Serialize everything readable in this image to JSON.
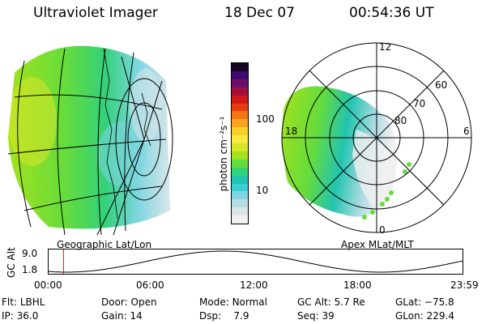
{
  "header": {
    "instrument": "Ultraviolet Imager",
    "date": "18 Dec 07",
    "time": "00:54:36 UT"
  },
  "colorbar": {
    "unit_label": "photon cm⁻²s⁻¹",
    "tick_100": "100",
    "tick_10": "10",
    "colors": [
      "#f0f0f0",
      "#d8e6ea",
      "#b8dde6",
      "#7fd6e0",
      "#3ccfd6",
      "#22c4b0",
      "#33d17a",
      "#66dc3c",
      "#a4e21c",
      "#d8e62a",
      "#f4ea40",
      "#fbcf2a",
      "#f9a31e",
      "#f47418",
      "#ea3a14",
      "#d01818",
      "#a0103a",
      "#6a0f6a",
      "#3d0a6e",
      "#140622"
    ]
  },
  "left_panel": {
    "label": "Geographic Lat/Lon"
  },
  "right_panel": {
    "label": "Apex MLat/MLT",
    "mlt_labels": {
      "top": "12",
      "left": "18",
      "right": "6",
      "bottom": "0"
    },
    "lat_labels": {
      "outer": "60",
      "mid": "70",
      "inner": "80"
    }
  },
  "timeline": {
    "ylabel": "GC Alt",
    "y_high": "9.0",
    "y_low": "1.8",
    "ticks": [
      "00:00",
      "06:00",
      "12:00",
      "18:00",
      "23:59"
    ],
    "marker_time_hours": 0.91,
    "marker_color": "#cc2222"
  },
  "info": {
    "row1": [
      {
        "label": "Flt:",
        "value": "LBHL"
      },
      {
        "label": "Door:",
        "value": "Open"
      },
      {
        "label": "Mode:",
        "value": "Normal"
      },
      {
        "label": "GC Alt:",
        "value": "5.7 Re"
      },
      {
        "label": "GLat:",
        "value": "−75.8"
      }
    ],
    "row2": [
      {
        "label": "IP:",
        "value": "36.0"
      },
      {
        "label": "Gain:",
        "value": "14"
      },
      {
        "label": "Dsp:",
        "value": "7.9"
      },
      {
        "label": "Seq:",
        "value": "39"
      },
      {
        "label": "GLon:",
        "value": "229.4"
      }
    ]
  }
}
